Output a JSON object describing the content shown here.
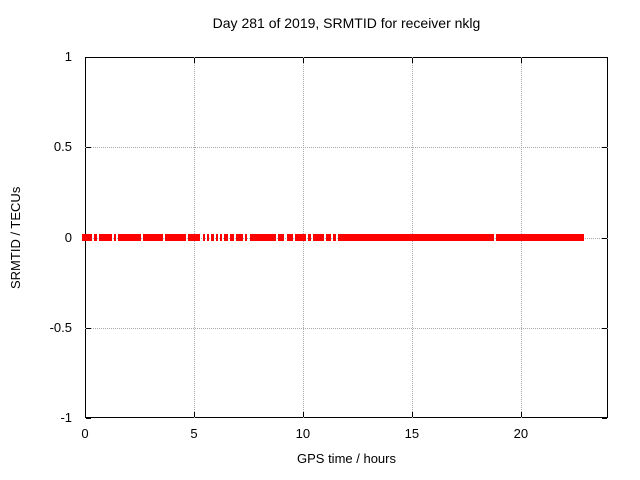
{
  "figure": {
    "background": "#ffffff",
    "border_color": "#000000",
    "text_color": "#000000"
  },
  "chart_data": {
    "type": "scatter",
    "title": "Day 281 of 2019, SRMTID for receiver nklg",
    "xlabel": "GPS time / hours",
    "ylabel": "SRMTID / TECUs",
    "xlim": [
      0,
      24
    ],
    "ylim": [
      -1,
      1
    ],
    "xticks": [
      {
        "v": 0,
        "label": "0"
      },
      {
        "v": 5,
        "label": "5"
      },
      {
        "v": 10,
        "label": "10"
      },
      {
        "v": 15,
        "label": "15"
      },
      {
        "v": 20,
        "label": "20"
      }
    ],
    "yticks": [
      {
        "v": 1,
        "label": "1"
      },
      {
        "v": 0.5,
        "label": "0.5"
      },
      {
        "v": 0,
        "label": "0"
      },
      {
        "v": -0.5,
        "label": "-0.5"
      },
      {
        "v": -1,
        "label": "-1"
      }
    ],
    "grid": true,
    "grid_style": "dotted",
    "grid_color": "#a8a8a8",
    "legend": "none",
    "series": [
      {
        "name": "SRMTID",
        "marker": "filled-square",
        "marker_color": "#ff0000",
        "y_value": 0,
        "x_extent_hours": [
          0,
          22.9
        ],
        "x_segments_hours": [
          [
            -0.12,
            0.3
          ],
          [
            0.4,
            0.53
          ],
          [
            0.62,
            1.23
          ],
          [
            1.33,
            1.44
          ],
          [
            1.52,
            2.55
          ],
          [
            2.65,
            3.57
          ],
          [
            3.67,
            4.63
          ],
          [
            4.72,
            5.3
          ],
          [
            5.4,
            5.5
          ],
          [
            5.6,
            5.7
          ],
          [
            5.8,
            5.9
          ],
          [
            6.0,
            6.1
          ],
          [
            6.2,
            6.3
          ],
          [
            6.4,
            6.55
          ],
          [
            6.65,
            6.85
          ],
          [
            6.95,
            7.25
          ],
          [
            7.35,
            7.45
          ],
          [
            7.55,
            8.75
          ],
          [
            8.85,
            9.15
          ],
          [
            9.25,
            9.55
          ],
          [
            9.65,
            10.15
          ],
          [
            10.25,
            10.35
          ],
          [
            10.45,
            10.95
          ],
          [
            11.05,
            11.3
          ],
          [
            11.4,
            11.5
          ],
          [
            11.6,
            18.75
          ],
          [
            18.85,
            22.88
          ]
        ]
      }
    ]
  }
}
